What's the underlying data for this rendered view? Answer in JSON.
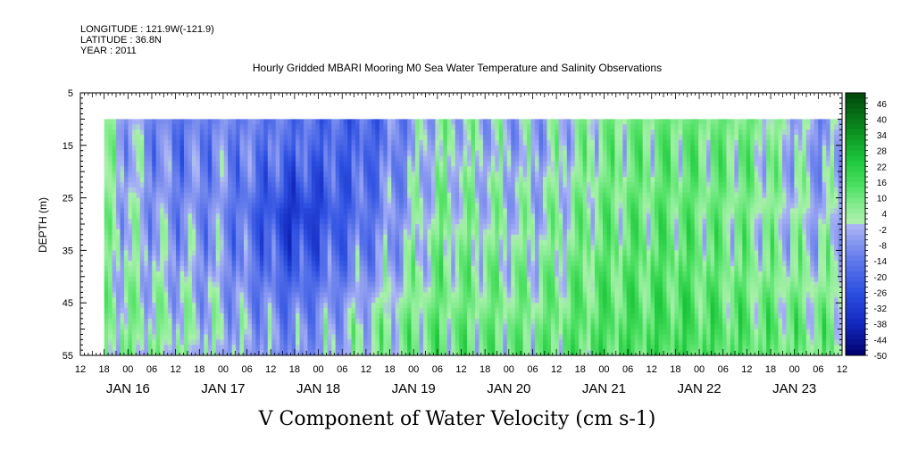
{
  "header": {
    "longitude": "LONGITUDE : 121.9W(-121.9)",
    "latitude": "LATITUDE : 36.8N",
    "year": "YEAR : 2011"
  },
  "chart_data": {
    "type": "heatmap",
    "title": "Hourly Gridded MBARI Mooring M0 Sea Water Temperature and Salinity Observations",
    "xlabel": "V Component of Water Velocity (cm s-1)",
    "ylabel": "DEPTH (m)",
    "ylim": [
      5,
      55
    ],
    "y_inverted": true,
    "y_ticks": [
      "5",
      "15",
      "25",
      "35",
      "45",
      "55"
    ],
    "x_range_hours": [
      "2011-01-15 12:00",
      "2011-01-23 12:00"
    ],
    "x_hour_ticks": [
      "12",
      "18",
      "00",
      "06",
      "12",
      "18",
      "00",
      "06",
      "12",
      "18",
      "00",
      "06",
      "12",
      "18",
      "00",
      "06",
      "12",
      "18",
      "00",
      "06",
      "12",
      "18",
      "00",
      "06",
      "12",
      "18",
      "00",
      "06",
      "12",
      "18",
      "00",
      "06",
      "12"
    ],
    "x_day_labels": [
      "JAN 16",
      "JAN 17",
      "JAN 18",
      "JAN 19",
      "JAN 20",
      "JAN 21",
      "JAN 22",
      "JAN 23"
    ],
    "data_extent": {
      "time_start": "2011-01-15 18:00",
      "time_end": "2011-01-23 12:00",
      "depth_top": 10,
      "depth_bottom": 55
    },
    "colorbar": {
      "levels": [
        "46",
        "40",
        "34",
        "28",
        "22",
        "16",
        "10",
        "4",
        "-2",
        "-8",
        "-14",
        "-20",
        "-26",
        "-32",
        "-38",
        "-44",
        "-50"
      ],
      "min": -50,
      "max": 50
    },
    "colors": {
      "strong_negative": "#00007a",
      "negative": "#4a64e6",
      "near_zero_negative": "#a5b0f0",
      "near_zero_positive": "#a8f0a8",
      "positive": "#3ce35c",
      "strong_positive": "#004a10"
    },
    "representative_profiles": [
      {
        "time": "2011-01-15 18:00",
        "depth_profile": [
          {
            "depth": 15,
            "v": 2
          },
          {
            "depth": 35,
            "v": 3
          },
          {
            "depth": 50,
            "v": 6
          }
        ]
      },
      {
        "time": "2011-01-16 12:00",
        "depth_profile": [
          {
            "depth": 15,
            "v": -14
          },
          {
            "depth": 35,
            "v": -6
          },
          {
            "depth": 50,
            "v": 2
          }
        ]
      },
      {
        "time": "2011-01-17 00:00",
        "depth_profile": [
          {
            "depth": 15,
            "v": -10
          },
          {
            "depth": 35,
            "v": -8
          },
          {
            "depth": 50,
            "v": -2
          }
        ]
      },
      {
        "time": "2011-01-17 18:00",
        "depth_profile": [
          {
            "depth": 15,
            "v": -16
          },
          {
            "depth": 28,
            "v": -34
          },
          {
            "depth": 50,
            "v": -10
          }
        ]
      },
      {
        "time": "2011-01-18 12:00",
        "depth_profile": [
          {
            "depth": 15,
            "v": -20
          },
          {
            "depth": 35,
            "v": -12
          },
          {
            "depth": 50,
            "v": 2
          }
        ]
      },
      {
        "time": "2011-01-19 06:00",
        "depth_profile": [
          {
            "depth": 15,
            "v": 2
          },
          {
            "depth": 35,
            "v": 6
          },
          {
            "depth": 50,
            "v": 10
          }
        ]
      },
      {
        "time": "2011-01-20 06:00",
        "depth_profile": [
          {
            "depth": 15,
            "v": -4
          },
          {
            "depth": 35,
            "v": 2
          },
          {
            "depth": 50,
            "v": 8
          }
        ]
      },
      {
        "time": "2011-01-21 00:00",
        "depth_profile": [
          {
            "depth": 15,
            "v": 6
          },
          {
            "depth": 35,
            "v": 10
          },
          {
            "depth": 50,
            "v": 14
          }
        ]
      },
      {
        "time": "2011-01-21 18:00",
        "depth_profile": [
          {
            "depth": 15,
            "v": 10
          },
          {
            "depth": 35,
            "v": 12
          },
          {
            "depth": 50,
            "v": 16
          }
        ]
      },
      {
        "time": "2011-01-22 12:00",
        "depth_profile": [
          {
            "depth": 15,
            "v": 8
          },
          {
            "depth": 35,
            "v": 6
          },
          {
            "depth": 50,
            "v": 12
          }
        ]
      },
      {
        "time": "2011-01-23 06:00",
        "depth_profile": [
          {
            "depth": 15,
            "v": -6
          },
          {
            "depth": 35,
            "v": 0
          },
          {
            "depth": 50,
            "v": 8
          }
        ]
      }
    ]
  }
}
